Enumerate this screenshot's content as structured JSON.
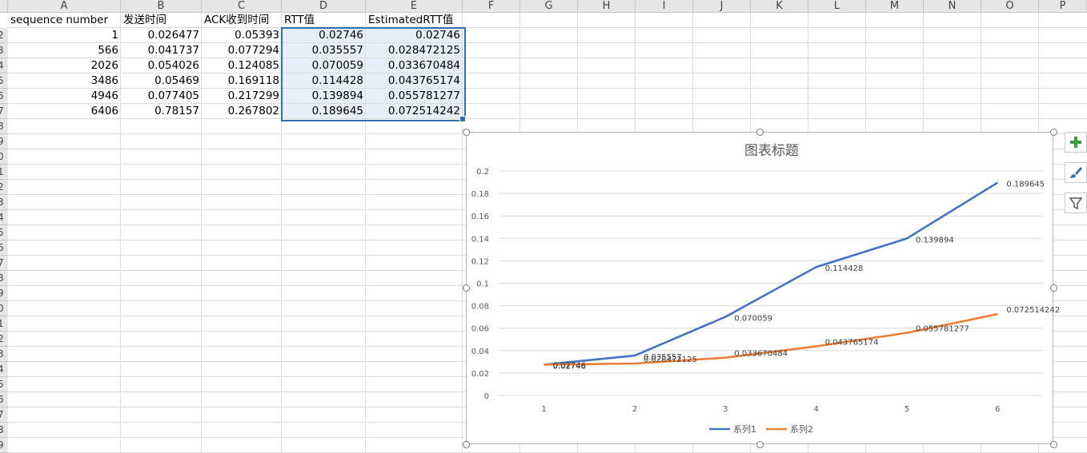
{
  "columns": [
    "A",
    "B",
    "C",
    "D",
    "E",
    "F",
    "G",
    "H",
    "I",
    "J",
    "K",
    "L",
    "M",
    "N",
    "O",
    "P"
  ],
  "row_labels": [
    "2",
    "3",
    "4",
    "5",
    "6",
    "7",
    "8",
    "9",
    "0",
    "1",
    "2",
    "3",
    "4",
    "5",
    "6",
    "7",
    "8",
    "9",
    "0",
    "1",
    "2",
    "3",
    "4",
    "5",
    "6",
    "7",
    "8",
    "9"
  ],
  "headers": [
    "sequence number",
    "发送时间",
    "ACK收到时间",
    "RTT值",
    "EstimatedRTT值"
  ],
  "rows": [
    [
      "1",
      "0.026477",
      "0.05393",
      "0.02746",
      "0.02746"
    ],
    [
      "566",
      "0.041737",
      "0.077294",
      "0.035557",
      "0.028472125"
    ],
    [
      "2026",
      "0.054026",
      "0.124085",
      "0.070059",
      "0.033670484"
    ],
    [
      "3486",
      "0.05469",
      "0.169118",
      "0.114428",
      "0.043765174"
    ],
    [
      "4946",
      "0.077405",
      "0.217299",
      "0.139894",
      "0.055781277"
    ],
    [
      "6406",
      "0.78157",
      "0.267802",
      "0.189645",
      "0.072514242"
    ]
  ],
  "selection": "D2:E7",
  "side_buttons": [
    {
      "icon": "plus-icon",
      "symbol": "+",
      "color": "#3c9a3c"
    },
    {
      "icon": "brush-icon",
      "symbol": "",
      "color": "#2f6fb5"
    },
    {
      "icon": "filter-icon",
      "symbol": "",
      "color": "#555555"
    }
  ],
  "chart_data": {
    "type": "line",
    "title": "图表标题",
    "categories": [
      "1",
      "2",
      "3",
      "4",
      "5",
      "6"
    ],
    "ylim": [
      0,
      0.2
    ],
    "yticks": [
      "0",
      "0.02",
      "0.04",
      "0.06",
      "0.08",
      "0.1",
      "0.12",
      "0.14",
      "0.16",
      "0.18",
      "0.2"
    ],
    "grid": true,
    "legend": "bottom",
    "series": [
      {
        "name": "系列1",
        "color": "#4472c4",
        "values": [
          0.02746,
          0.035557,
          0.070059,
          0.114428,
          0.139894,
          0.189645
        ],
        "labels": [
          "0.02746",
          "0.035557",
          "0.070059",
          "0.114428",
          "0.139894",
          "0.189645"
        ]
      },
      {
        "name": "系列2",
        "color": "#ed7d31",
        "values": [
          0.02746,
          0.028472125,
          0.033670484,
          0.043765174,
          0.055781277,
          0.072514242
        ],
        "labels": [
          "0.02746",
          "0.028472125",
          "0.033670484",
          "0.043765174",
          "0.055781277",
          "0.072514242"
        ]
      }
    ]
  }
}
